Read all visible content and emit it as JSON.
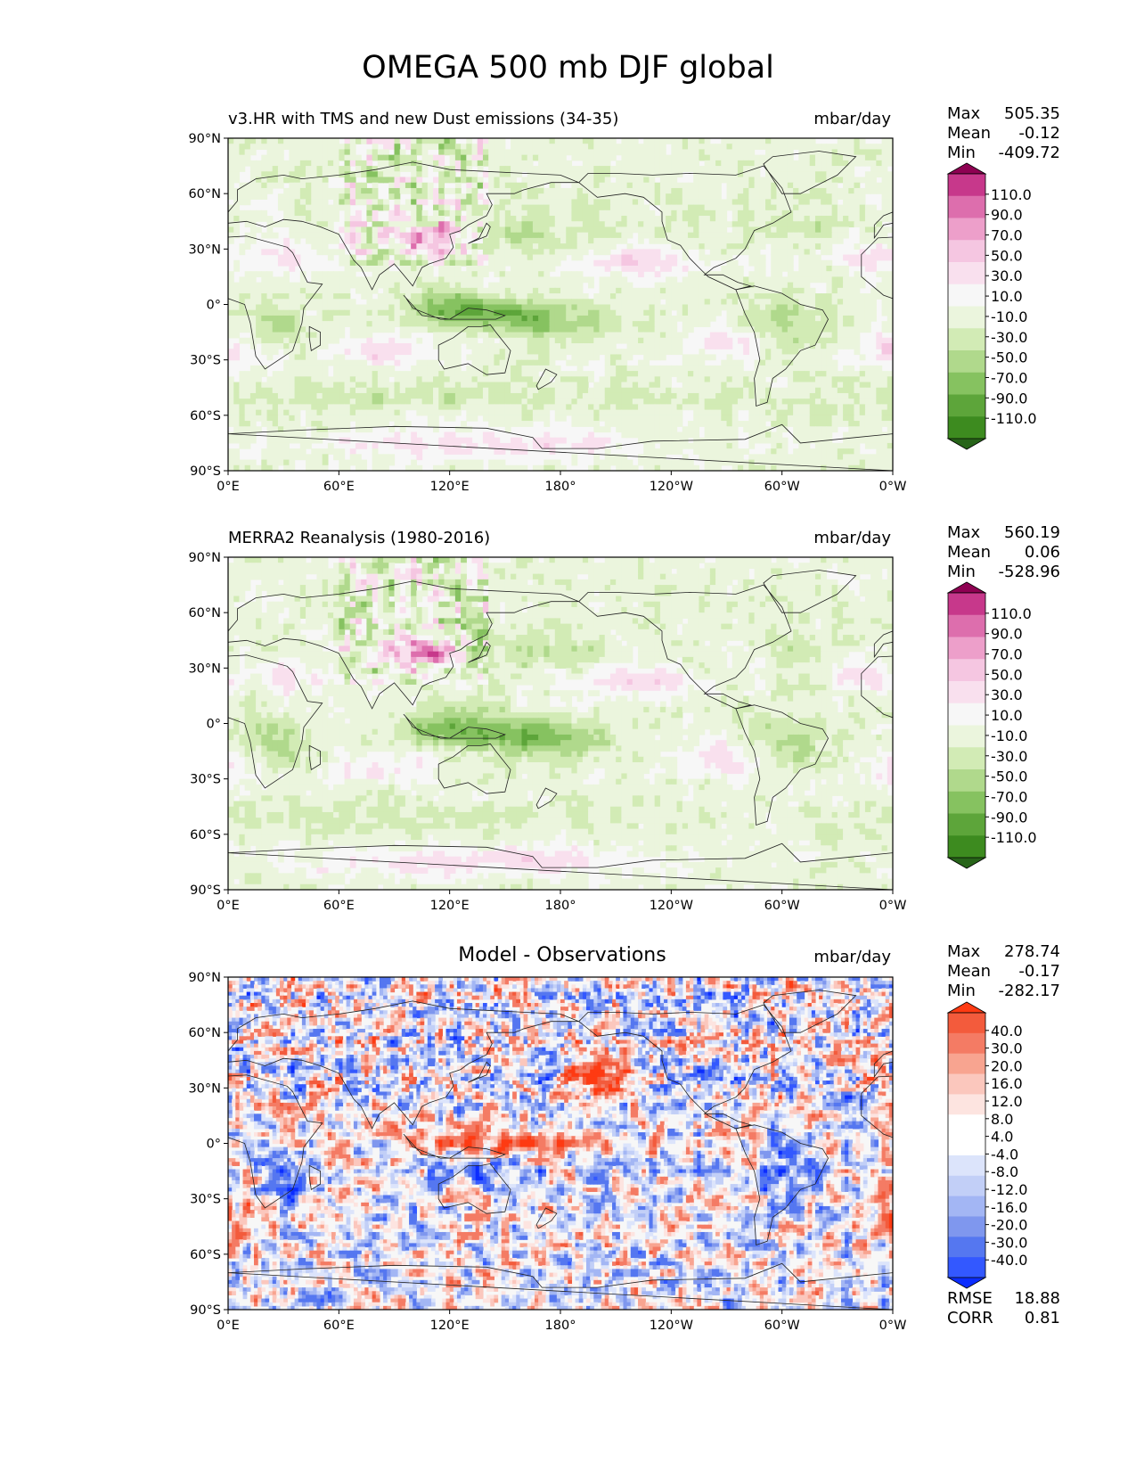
{
  "figure_title": "OMEGA 500 mb DJF global",
  "xtick_labels": [
    "0°E",
    "60°E",
    "120°E",
    "180°",
    "120°W",
    "60°W",
    "0°W"
  ],
  "ytick_labels": [
    "90°N",
    "60°N",
    "30°N",
    "0°",
    "30°S",
    "60°S",
    "90°S"
  ],
  "colors": {
    "green_pink": [
      "#276419",
      "#3d8b1f",
      "#5da53a",
      "#86c260",
      "#b0d98c",
      "#d2ebb5",
      "#ebf5dd",
      "#f7f7f7",
      "#f9e0ee",
      "#f5c6e1",
      "#ed9fca",
      "#dd6ead",
      "#c7388b",
      "#8e0152"
    ],
    "blue_red": [
      "#0b2cff",
      "#3358ff",
      "#5577f0",
      "#7f97ee",
      "#a3b6f4",
      "#c2cff7",
      "#dce4fb",
      "#ffffff",
      "#ffffff",
      "#fde4e0",
      "#fbc7bd",
      "#f8a490",
      "#f47b64",
      "#f35b3c",
      "#fe3a12"
    ],
    "coast": "#222222"
  },
  "chart_data": [
    {
      "type": "heatmap",
      "title": "v3.HR with TMS and new Dust emissions (34-35)",
      "units": "mbar/day",
      "lon_range": [
        0,
        360
      ],
      "lat_range": [
        -90,
        90
      ],
      "stats": {
        "max": "505.35",
        "mean": "-0.12",
        "min": "-409.72"
      },
      "colorbar": {
        "levels": [
          "110.0",
          "90.0",
          "70.0",
          "50.0",
          "30.0",
          "10.0",
          "-10.0",
          "-30.0",
          "-50.0",
          "-70.0",
          "-90.0",
          "-110.0"
        ],
        "colormap": "green_pink",
        "extend": "both"
      }
    },
    {
      "type": "heatmap",
      "title": "MERRA2 Reanalysis (1980-2016)",
      "units": "mbar/day",
      "lon_range": [
        0,
        360
      ],
      "lat_range": [
        -90,
        90
      ],
      "stats": {
        "max": "560.19",
        "mean": "0.06",
        "min": "-528.96"
      },
      "colorbar": {
        "levels": [
          "110.0",
          "90.0",
          "70.0",
          "50.0",
          "30.0",
          "10.0",
          "-10.0",
          "-30.0",
          "-50.0",
          "-70.0",
          "-90.0",
          "-110.0"
        ],
        "colormap": "green_pink",
        "extend": "both"
      }
    },
    {
      "type": "heatmap",
      "title": "Model - Observations",
      "units": "mbar/day",
      "lon_range": [
        0,
        360
      ],
      "lat_range": [
        -90,
        90
      ],
      "stats": {
        "max": "278.74",
        "mean": "-0.17",
        "min": "-282.17",
        "rmse": "18.88",
        "corr": "0.81"
      },
      "colorbar": {
        "levels": [
          "40.0",
          "30.0",
          "20.0",
          "16.0",
          "12.0",
          "8.0",
          "4.0",
          "-4.0",
          "-8.0",
          "-12.0",
          "-16.0",
          "-20.0",
          "-30.0",
          "-40.0"
        ],
        "colormap": "blue_red",
        "extend": "both"
      }
    }
  ],
  "stat_labels": {
    "max": "Max",
    "mean": "Mean",
    "min": "Min",
    "rmse": "RMSE",
    "corr": "CORR"
  }
}
